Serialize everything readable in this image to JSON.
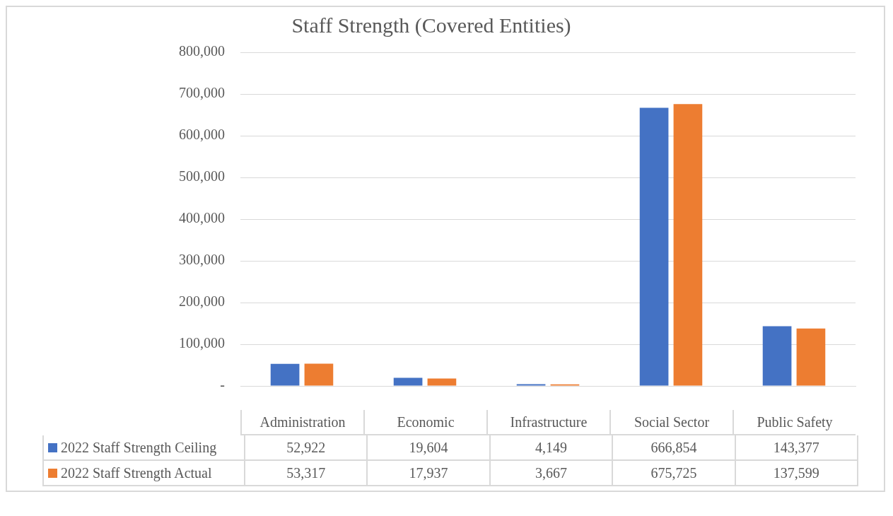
{
  "chart_data": {
    "type": "bar",
    "title": "Staff Strength (Covered Entities)",
    "categories": [
      "Administration",
      "Economic",
      "Infrastructure",
      "Social Sector",
      "Public Safety"
    ],
    "series": [
      {
        "name": "2022 Staff Strength Ceiling",
        "color": "#4472c4",
        "values": [
          52922,
          19604,
          4149,
          666854,
          143377
        ],
        "value_labels": [
          "52,922",
          "19,604",
          "4,149",
          "666,854",
          "143,377"
        ]
      },
      {
        "name": "2022 Staff Strength Actual",
        "color": "#ed7d31",
        "values": [
          53317,
          17937,
          3667,
          675725,
          137599
        ],
        "value_labels": [
          "53,317",
          "17,937",
          "3,667",
          "675,725",
          "137,599"
        ]
      }
    ],
    "ylim": [
      0,
      800000
    ],
    "yticks": [
      {
        "value": 0,
        "label": "-"
      },
      {
        "value": 100000,
        "label": "100,000"
      },
      {
        "value": 200000,
        "label": "200,000"
      },
      {
        "value": 300000,
        "label": "300,000"
      },
      {
        "value": 400000,
        "label": "400,000"
      },
      {
        "value": 500000,
        "label": "500,000"
      },
      {
        "value": 600000,
        "label": "600,000"
      },
      {
        "value": 700000,
        "label": "700,000"
      },
      {
        "value": 800000,
        "label": "800,000"
      }
    ],
    "grid": "y",
    "legend": "bottom"
  }
}
